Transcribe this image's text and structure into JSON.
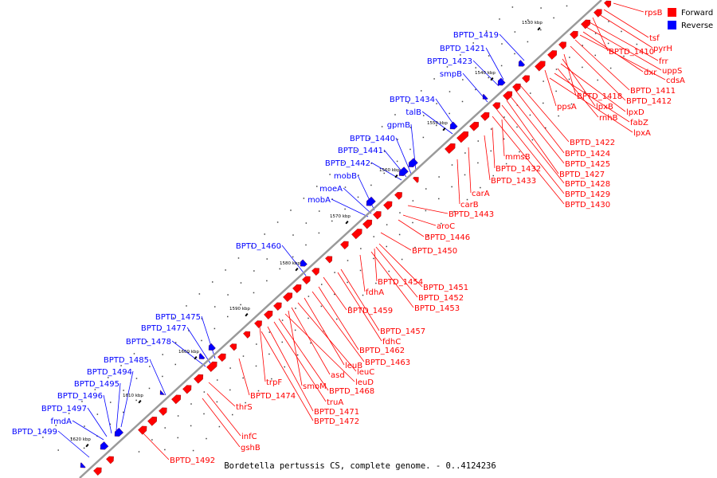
{
  "caption": "Bordetella pertussis CS, complete genome. - 0..4124236",
  "legend": [
    {
      "label": "Forward",
      "color": "#ff0000"
    },
    {
      "label": "Reverse",
      "color": "#0000ff"
    }
  ],
  "colors": {
    "forward": "#ff0000",
    "reverse": "#0000ff",
    "backbone": "#9a9a9a"
  },
  "ticks": [
    "1530 kbp",
    "1540 kbp",
    "1550 kbp",
    "1560 kbp",
    "1570 kbp",
    "1580 kbp",
    "1590 kbp",
    "1600 kbp",
    "1610 kbp",
    "1620 kbp"
  ],
  "forward_genes": [
    "rpsB",
    "tsf",
    "pyrH",
    "BPTD_1410",
    "frr",
    "uppS",
    "dxr",
    "cdsA",
    "BPTD_1411",
    "BPTD_1412",
    "BPTD_1418",
    "lpxB",
    "ppsA",
    "lpxD",
    "rnhB",
    "fabZ",
    "lpxA",
    "BPTD_1422",
    "BPTD_1424",
    "mmsB",
    "BPTD_1425",
    "BPTD_1427",
    "BPTD_1432",
    "BPTD_1428",
    "BPTD_1433",
    "BPTD_1429",
    "carA",
    "BPTD_1430",
    "carB",
    "BPTD_1443",
    "aroC",
    "BPTD_1446",
    "BPTD_1450",
    "BPTD_1454",
    "BPTD_1451",
    "fdhA",
    "BPTD_1452",
    "BPTD_1453",
    "BPTD_1459",
    "BPTD_1457",
    "fdhC",
    "BPTD_1462",
    "BPTD_1463",
    "leuB",
    "leuC",
    "asd",
    "smoM",
    "leuD",
    "BPTD_1468",
    "trpF",
    "BPTD_1474",
    "truA",
    "BPTD_1471",
    "BPTD_1472",
    "thrS",
    "infC",
    "gshB",
    "BPTD_1492"
  ],
  "reverse_genes": [
    "BPTD_1419",
    "BPTD_1421",
    "BPTD_1423",
    "smpB",
    "BPTD_1434",
    "talB",
    "gpmB",
    "BPTD_1440",
    "BPTD_1441",
    "BPTD_1442",
    "mobB",
    "moeA",
    "mobA",
    "BPTD_1460",
    "BPTD_1475",
    "BPTD_1477",
    "BPTD_1478",
    "BPTD_1485",
    "BPTD_1494",
    "BPTD_1495",
    "BPTD_1496",
    "BPTD_1497",
    "fmdA",
    "BPTD_1499"
  ]
}
